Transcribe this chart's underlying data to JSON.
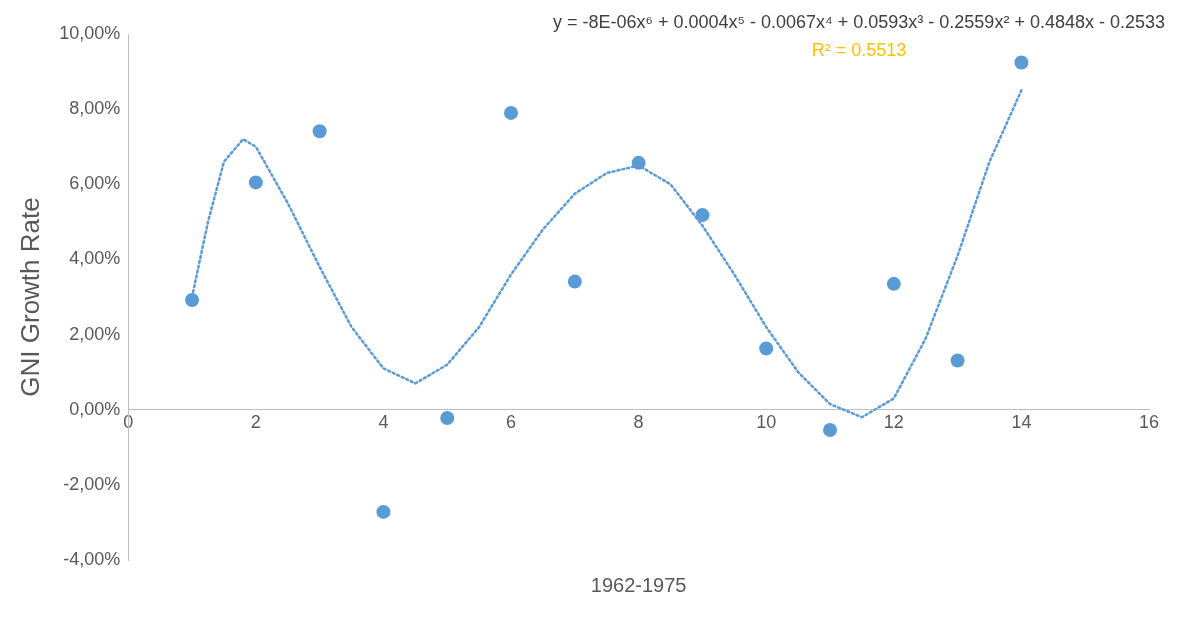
{
  "chart_data": {
    "type": "scatter",
    "xlabel": "1962-1975",
    "ylabel": "GNI Growth Rate",
    "annotations": [
      "y = -8E-06x⁶ + 0.0004x⁵ - 0.0067x⁴ + 0.0593x³ - 0.2559x² + 0.4848x - 0.2533",
      "R² = 0.5513"
    ],
    "series": [
      {
        "type": "scatter",
        "color": "#5b9bd5",
        "marker": "circle",
        "x": [
          1,
          2,
          3,
          4,
          5,
          6,
          7,
          8,
          9,
          10,
          11,
          12,
          13,
          14
        ],
        "values": [
          2.92,
          6.05,
          7.41,
          -2.72,
          -0.22,
          7.9,
          3.41,
          6.57,
          5.18,
          1.63,
          -0.54,
          3.35,
          1.31,
          9.24
        ]
      },
      {
        "type": "line",
        "color": "#5b9bd5",
        "marker": "none",
        "line_style": "dotted",
        "x": [
          1,
          1.25,
          1.5,
          1.8,
          2,
          2.5,
          3,
          3.5,
          4,
          4.5,
          5,
          5.5,
          6,
          6.5,
          7,
          7.5,
          8,
          8.5,
          9,
          9.5,
          10,
          10.5,
          11,
          11.5,
          12,
          12.5,
          13,
          13.5,
          14
        ],
        "values": [
          3.0,
          5.0,
          6.6,
          7.2,
          7.0,
          5.5,
          3.8,
          2.2,
          1.1,
          0.7,
          1.2,
          2.2,
          3.6,
          4.8,
          5.75,
          6.3,
          6.5,
          6.0,
          4.9,
          3.6,
          2.2,
          1.0,
          0.15,
          -0.2,
          0.3,
          1.9,
          4.1,
          6.6,
          8.5
        ]
      }
    ],
    "xlim": [
      0,
      16
    ],
    "xticks": [
      0,
      2,
      4,
      6,
      8,
      10,
      12,
      14,
      16
    ],
    "ylim": [
      -4,
      10
    ],
    "yticks": [
      {
        "value": -4,
        "label": "-4,00%"
      },
      {
        "value": -2,
        "label": "-2,00%"
      },
      {
        "value": 0,
        "label": "0,00%"
      },
      {
        "value": 2,
        "label": "2,00%"
      },
      {
        "value": 4,
        "label": "4,00%"
      },
      {
        "value": 6,
        "label": "6,00%"
      },
      {
        "value": 8,
        "label": "8,00%"
      },
      {
        "value": 10,
        "label": "10,00%"
      }
    ],
    "grid": false,
    "legend": false
  }
}
